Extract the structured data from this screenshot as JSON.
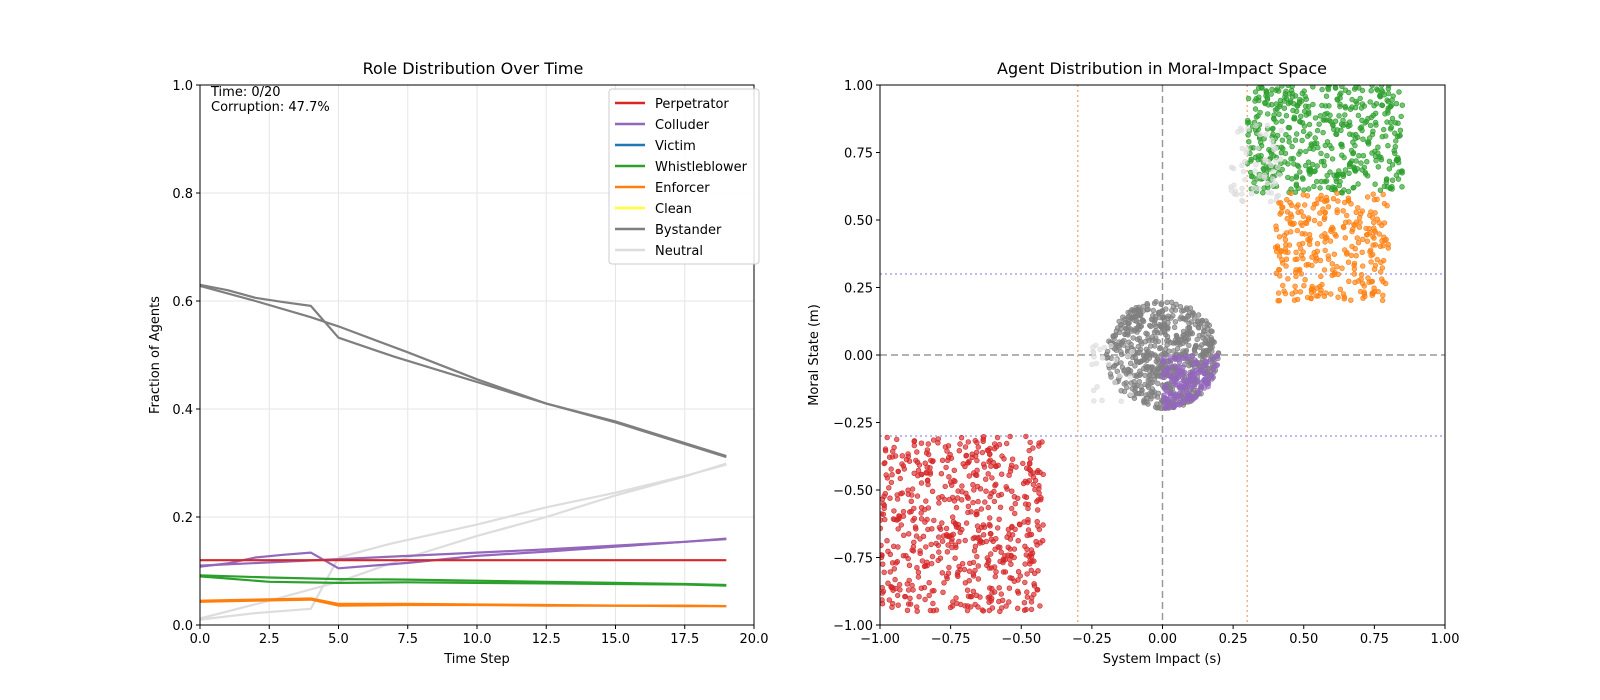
{
  "chart_data": [
    {
      "type": "line",
      "title": "Role Distribution Over Time",
      "xlabel": "Time Step",
      "ylabel": "Fraction of Agents",
      "xlim": [
        0,
        20
      ],
      "ylim": [
        0,
        1
      ],
      "xticks": [
        "0.0",
        "2.5",
        "5.0",
        "7.5",
        "10.0",
        "12.5",
        "15.0",
        "17.5",
        "20.0"
      ],
      "yticks": [
        "0.0",
        "0.2",
        "0.4",
        "0.6",
        "0.8",
        "1.0"
      ],
      "grid": true,
      "legend_position": "top-right",
      "annotations": [
        "Time: 0/20",
        "Corruption: 47.7%"
      ],
      "legend": [
        {
          "name": "Perpetrator",
          "color": "#d62728"
        },
        {
          "name": "Colluder",
          "color": "#9467bd"
        },
        {
          "name": "Victim",
          "color": "#1f77b4"
        },
        {
          "name": "Whistleblower",
          "color": "#2ca02c"
        },
        {
          "name": "Enforcer",
          "color": "#ff7f0e"
        },
        {
          "name": "Clean",
          "color": "#ffff33"
        },
        {
          "name": "Bystander",
          "color": "#7f7f7f"
        },
        {
          "name": "Neutral",
          "color": "#dddddd"
        }
      ],
      "series": [
        {
          "role": "Bystander",
          "color": "#7f7f7f",
          "x": [
            0,
            1,
            2,
            3,
            4,
            5,
            7,
            10,
            12.5,
            15,
            17.5,
            19
          ],
          "y": [
            0.63,
            0.62,
            0.606,
            0.598,
            0.591,
            0.532,
            0.497,
            0.45,
            0.41,
            0.377,
            0.337,
            0.313
          ]
        },
        {
          "role": "Bystander",
          "color": "#7f7f7f",
          "x": [
            0,
            2,
            4,
            5,
            7.5,
            10,
            12.5,
            15,
            17.5,
            19
          ],
          "y": [
            0.628,
            0.6,
            0.57,
            0.553,
            0.505,
            0.455,
            0.41,
            0.375,
            0.335,
            0.311
          ]
        },
        {
          "role": "Neutral",
          "color": "#dddddd",
          "x": [
            0,
            2,
            4,
            5,
            7,
            10,
            12.5,
            15,
            17.5,
            19
          ],
          "y": [
            0.01,
            0.022,
            0.03,
            0.125,
            0.152,
            0.186,
            0.218,
            0.245,
            0.276,
            0.297
          ]
        },
        {
          "role": "Neutral",
          "color": "#dddddd",
          "x": [
            0,
            2.5,
            5,
            7.5,
            10,
            12.5,
            15,
            17.5,
            19
          ],
          "y": [
            0.012,
            0.045,
            0.08,
            0.125,
            0.165,
            0.2,
            0.24,
            0.275,
            0.299
          ]
        },
        {
          "role": "Colluder",
          "color": "#9467bd",
          "x": [
            0,
            1,
            2,
            3,
            4,
            5,
            7.5,
            10,
            12.5,
            15,
            17.5,
            19
          ],
          "y": [
            0.108,
            0.114,
            0.125,
            0.13,
            0.134,
            0.105,
            0.115,
            0.128,
            0.136,
            0.145,
            0.154,
            0.159
          ]
        },
        {
          "role": "Colluder",
          "color": "#9467bd",
          "x": [
            0,
            2.5,
            5,
            7.5,
            10,
            12.5,
            15,
            17.5,
            19
          ],
          "y": [
            0.11,
            0.116,
            0.122,
            0.128,
            0.134,
            0.14,
            0.147,
            0.154,
            0.16
          ]
        },
        {
          "role": "Perpetrator",
          "color": "#d62728",
          "x": [
            0,
            5,
            10,
            15,
            19
          ],
          "y": [
            0.12,
            0.12,
            0.12,
            0.12,
            0.12
          ]
        },
        {
          "role": "Whistleblower",
          "color": "#2ca02c",
          "x": [
            0,
            2.5,
            5,
            7.5,
            10,
            12.5,
            15,
            17.5,
            19
          ],
          "y": [
            0.09,
            0.08,
            0.078,
            0.079,
            0.078,
            0.077,
            0.076,
            0.075,
            0.073
          ]
        },
        {
          "role": "Whistleblower",
          "color": "#2ca02c",
          "x": [
            0,
            2.5,
            5,
            7.5,
            10,
            12.5,
            15,
            17.5,
            19
          ],
          "y": [
            0.092,
            0.088,
            0.085,
            0.084,
            0.082,
            0.08,
            0.078,
            0.076,
            0.074
          ]
        },
        {
          "role": "Enforcer",
          "color": "#ff7f0e",
          "x": [
            0,
            2,
            4,
            5,
            7.5,
            10,
            12.5,
            15,
            17.5,
            19
          ],
          "y": [
            0.043,
            0.045,
            0.047,
            0.036,
            0.037,
            0.037,
            0.036,
            0.036,
            0.035,
            0.035
          ]
        },
        {
          "role": "Enforcer",
          "color": "#ff7f0e",
          "x": [
            0,
            2,
            4,
            5,
            7.5,
            10,
            12.5,
            15,
            17.5,
            19
          ],
          "y": [
            0.045,
            0.047,
            0.049,
            0.039,
            0.039,
            0.038,
            0.037,
            0.036,
            0.036,
            0.035
          ]
        }
      ]
    },
    {
      "type": "scatter",
      "title": "Agent Distribution in Moral-Impact Space",
      "xlabel": "System Impact (s)",
      "ylabel": "Moral State (m)",
      "xlim": [
        -1,
        1
      ],
      "ylim": [
        -1,
        1
      ],
      "xticks": [
        "−1.00",
        "−0.75",
        "−0.50",
        "−0.25",
        "0.00",
        "0.25",
        "0.50",
        "0.75",
        "1.00"
      ],
      "yticks": [
        "−1.00",
        "−0.75",
        "−0.50",
        "−0.25",
        "0.00",
        "0.25",
        "0.50",
        "0.75",
        "1.00"
      ],
      "reference_lines": {
        "x_axis_dashed": 0,
        "y_axis_dashed": 0,
        "x_thresholds": [
          -0.3,
          0.3
        ],
        "y_thresholds": [
          -0.3,
          0.3
        ]
      },
      "clusters": [
        {
          "role": "Perpetrator",
          "color": "#d62728",
          "shape": "rect",
          "x_range": [
            -1.0,
            -0.42
          ],
          "y_range": [
            -0.95,
            -0.3
          ],
          "count": 600
        },
        {
          "role": "Bystander",
          "color": "#7f7f7f",
          "shape": "disk",
          "center": [
            0,
            0
          ],
          "radius": 0.2,
          "count": 650
        },
        {
          "role": "Colluder",
          "color": "#9467bd",
          "shape": "quarter-disk",
          "center": [
            0,
            0
          ],
          "radius": 0.2,
          "quadrant": "lower-right",
          "count": 170
        },
        {
          "role": "Neutral",
          "color": "#dddddd",
          "shape": "rect",
          "x_range": [
            -0.25,
            -0.1
          ],
          "y_range": [
            -0.2,
            0.05
          ],
          "count": 25
        },
        {
          "role": "Whistleblower",
          "color": "#2ca02c",
          "shape": "rect",
          "x_range": [
            0.3,
            0.85
          ],
          "y_range": [
            0.6,
            1.0
          ],
          "count": 500
        },
        {
          "role": "Neutral",
          "color": "#dddddd",
          "shape": "rect",
          "x_range": [
            0.24,
            0.42
          ],
          "y_range": [
            0.56,
            0.85
          ],
          "count": 60
        },
        {
          "role": "Enforcer",
          "color": "#ff7f0e",
          "shape": "rect",
          "x_range": [
            0.4,
            0.8
          ],
          "y_range": [
            0.2,
            0.6
          ],
          "count": 300
        }
      ]
    }
  ]
}
